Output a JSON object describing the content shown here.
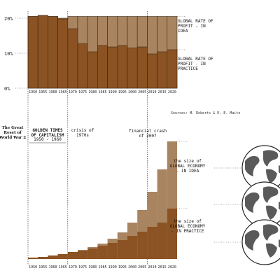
{
  "colors": {
    "practice": "#8b5323",
    "idea": "#a98460",
    "outline": "#3a2a1c",
    "guide": "#555555",
    "globe_land": "#5a5a5a"
  },
  "chart_data": [
    {
      "type": "bar",
      "stacked": "overlay",
      "categories": [
        "1950",
        "1955",
        "1960",
        "1965",
        "1970",
        "1975",
        "1980",
        "1985",
        "1990",
        "1995",
        "2000",
        "2005",
        "2010",
        "2015",
        "2020"
      ],
      "series": [
        {
          "name": "GLOBAL RATE OF PROFIT - IN IDEA",
          "values": [
            20.5,
            20.8,
            20.5,
            20.0,
            20.5,
            20.5,
            20.5,
            20.5,
            20.5,
            20.5,
            20.5,
            20.5,
            20.5,
            20.5,
            20.5
          ]
        },
        {
          "name": "GLOBAL RATE OF PROFIT - IN PRACTICE",
          "values": [
            20.5,
            20.8,
            20.5,
            19.8,
            17.0,
            12.7,
            10.4,
            12.2,
            11.8,
            12.2,
            11.5,
            11.8,
            9.8,
            10.4,
            11.0
          ]
        }
      ],
      "ylim": [
        0,
        22
      ],
      "yticks": [
        "0%",
        "10%",
        "20%"
      ],
      "grid": false
    },
    {
      "type": "bar",
      "stacked": "overlay",
      "categories": [
        "1950",
        "1955",
        "1960",
        "1965",
        "1970",
        "1975",
        "1980",
        "1985",
        "1990",
        "1995",
        "2000",
        "2005",
        "2010",
        "2015",
        "2020"
      ],
      "series": [
        {
          "name": "the size of GLOBAL ECONOMY - IN IDEA",
          "values": [
            1,
            1.5,
            2.5,
            3.5,
            5,
            6.5,
            8.5,
            11,
            14.5,
            19,
            26,
            35,
            48,
            64,
            84
          ]
        },
        {
          "name": "the size of GLOBAL ECONOMY - IN PRACTICE",
          "values": [
            1,
            1.5,
            2.5,
            3.5,
            5,
            6,
            7.5,
            9.5,
            11.5,
            13.5,
            16.5,
            19.5,
            23,
            26,
            36
          ]
        }
      ],
      "ylim": [
        0,
        88
      ],
      "grid": false
    }
  ],
  "legend_top": {
    "idea": "GLOBAL RATE OF\nPROFIT - IN\nIDEA",
    "practice": "GLOBAL RATE OF\nPROFIT - IN\nPRACTICE"
  },
  "legend_bottom": {
    "idea": "the size of\nGLOBAL ECONOMY\n- IN IDEA",
    "practice": "the size of\nGLOBAL ECONOMY\n- IN PRACTICE"
  },
  "sources": "Sources: M. Roberts & E. E. Maito",
  "annotations": {
    "great_reset": "The Great\nReset of\nWorld War 2",
    "golden": "GOLDEN TIMES\nOF CAPITALISM",
    "golden_years": "1950 - 1960",
    "crisis": "crisis of\n1970s",
    "financial": "financial crash\nof 2007"
  },
  "globe_count": 3
}
